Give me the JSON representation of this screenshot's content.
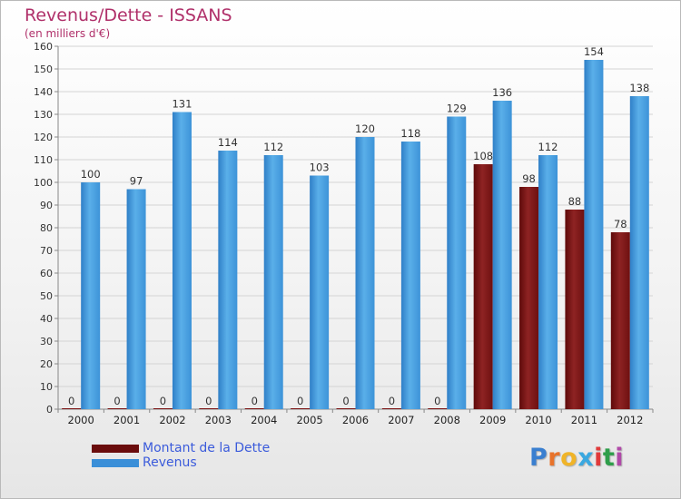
{
  "title": "Revenus/Dette - ISSANS",
  "subtitle": "(en milliers d'€)",
  "colors": {
    "title": "#b0306a",
    "dette": "#7a1010",
    "revenus": "#3a8fd8",
    "legend_text": "#3b5bdb"
  },
  "legend": {
    "dette_label": "Montant de la Dette",
    "revenus_label": "Revenus"
  },
  "logo": {
    "letters": [
      "P",
      "r",
      "o",
      "x",
      "i",
      "t",
      "i"
    ],
    "colors": [
      "#3a7fd0",
      "#e8732b",
      "#f0b428",
      "#3aa8e0",
      "#e03a3a",
      "#2e9e4a",
      "#b04aa8"
    ]
  },
  "chart_data": {
    "type": "bar",
    "categories": [
      "2000",
      "2001",
      "2002",
      "2003",
      "2004",
      "2005",
      "2006",
      "2007",
      "2008",
      "2009",
      "2010",
      "2011",
      "2012"
    ],
    "series": [
      {
        "name": "Montant de la Dette",
        "values": [
          0,
          0,
          0,
          0,
          0,
          0,
          0,
          0,
          0,
          108,
          98,
          88,
          78
        ],
        "color": "#7a1010"
      },
      {
        "name": "Revenus",
        "values": [
          100,
          97,
          131,
          114,
          112,
          103,
          120,
          118,
          129,
          136,
          112,
          154,
          138
        ],
        "color": "#3a8fd8"
      }
    ],
    "ylim": [
      0,
      160
    ],
    "yticks": [
      0,
      10,
      20,
      30,
      40,
      50,
      60,
      70,
      80,
      90,
      100,
      110,
      120,
      130,
      140,
      150,
      160
    ],
    "grid": true,
    "legend_position": "bottom-left"
  }
}
